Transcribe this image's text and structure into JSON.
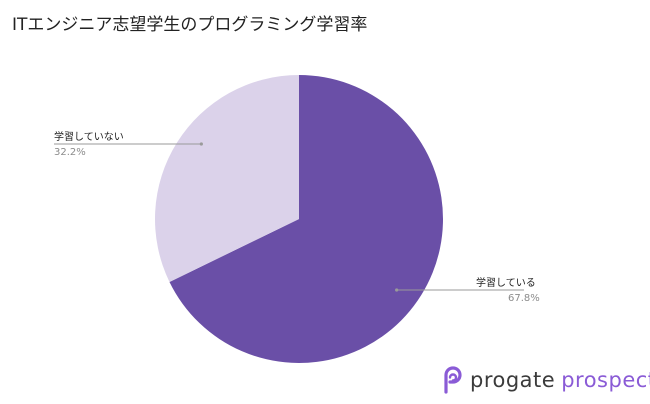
{
  "chart_data": {
    "type": "pie",
    "title": "ITエンジニア志望学生のプログラミング学習率",
    "slices": [
      {
        "label": "学習している",
        "value": 67.8,
        "display": "67.8%",
        "color": "#6a4fa7"
      },
      {
        "label": "学習していない",
        "value": 32.2,
        "display": "32.2%",
        "color": "#dbd2ea"
      }
    ],
    "label_text_color": "#222222",
    "value_text_color": "#8c8c8c",
    "leader_line_color": "#9a9a9a"
  },
  "brand": {
    "word1": "progate",
    "word2": "prospects",
    "icon": "progate-logo-icon",
    "accent": "#8a5bd6"
  }
}
